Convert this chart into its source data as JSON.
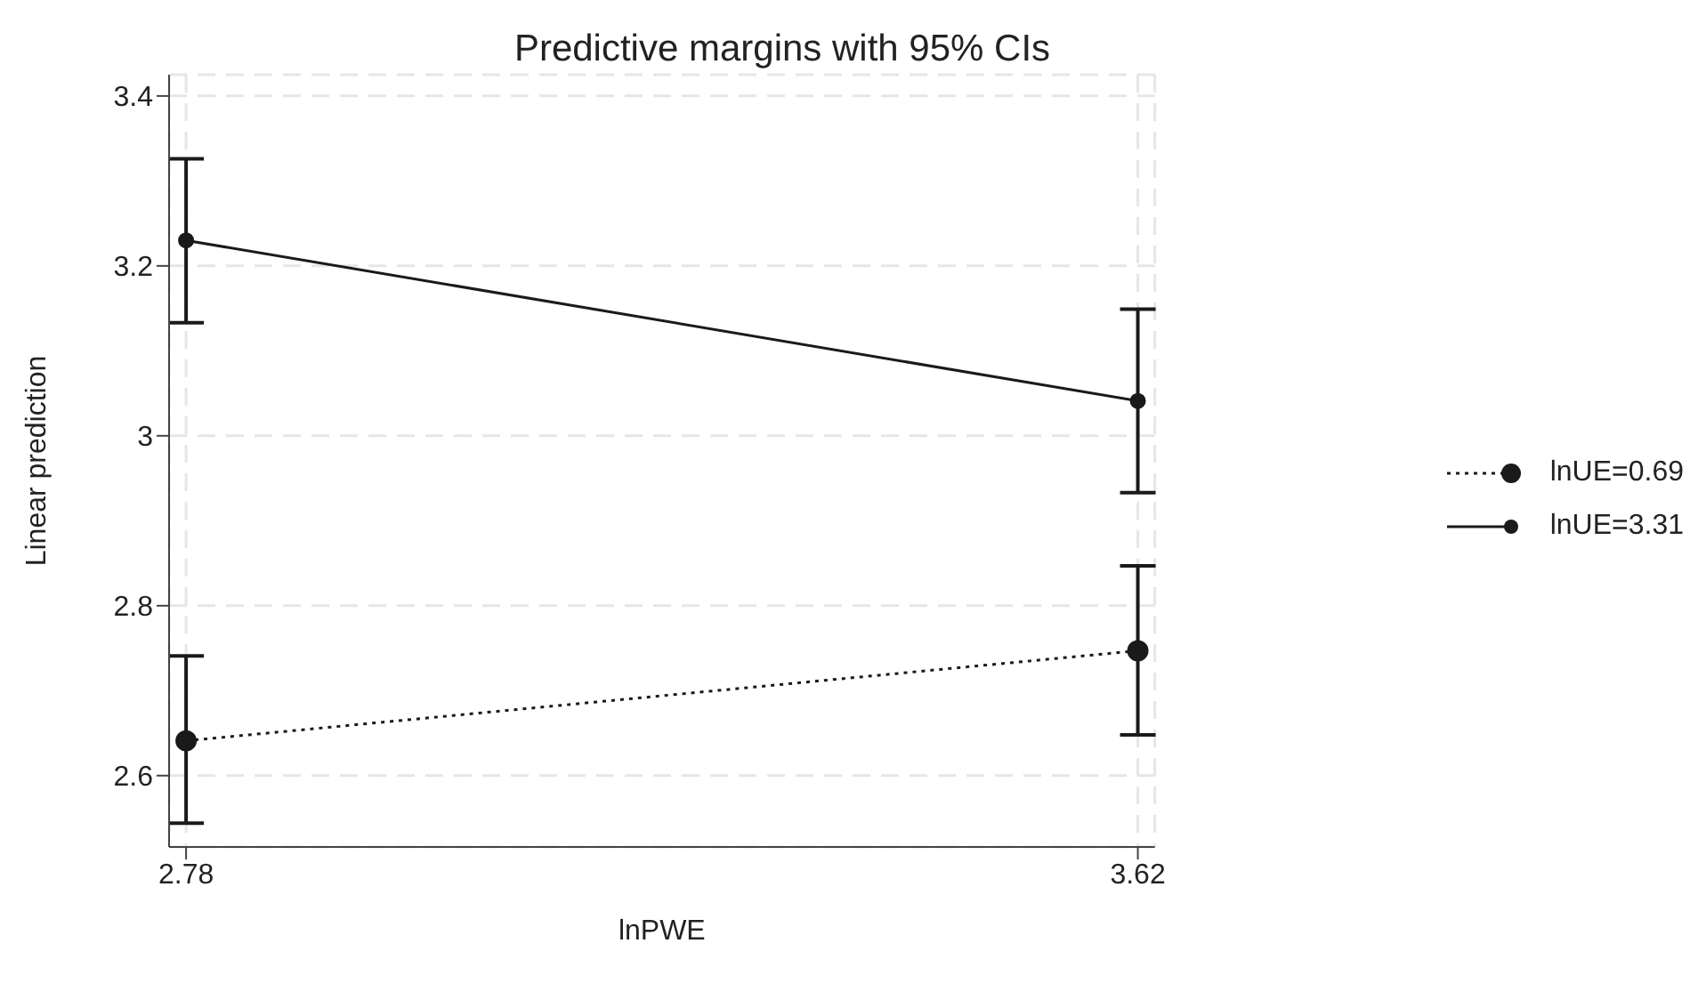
{
  "chart_data": {
    "type": "line",
    "title": "Predictive margins with 95% CIs",
    "xlabel": "lnPWE",
    "ylabel": "Linear prediction",
    "x": [
      2.78,
      3.62
    ],
    "series": [
      {
        "name": "lnUE=0.69",
        "color": "#1a1a1a",
        "line_style": "dotted",
        "values": [
          2.641,
          2.747
        ],
        "errors": [
          [
            2.544,
            2.741
          ],
          [
            2.648,
            2.847
          ]
        ]
      },
      {
        "name": "lnUE=3.31",
        "color": "#1a1a1a",
        "line_style": "solid",
        "values": [
          3.23,
          3.041
        ],
        "errors": [
          [
            3.133,
            3.326
          ],
          [
            2.933,
            3.149
          ]
        ]
      }
    ],
    "xlim": [
      2.765,
      3.635
    ],
    "xticks": [
      2.78,
      3.62
    ],
    "ylim": [
      2.516,
      3.425
    ],
    "yticks": [
      2.6,
      2.8,
      3,
      3.2,
      3.4
    ],
    "grid": true,
    "legend": "right",
    "marker": "circle"
  }
}
